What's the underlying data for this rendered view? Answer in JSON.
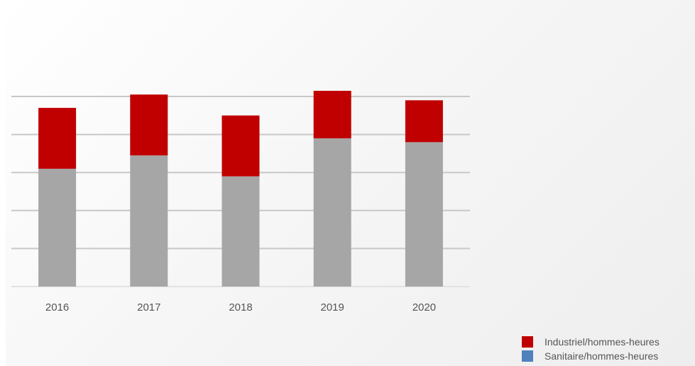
{
  "chart_data": {
    "type": "bar",
    "stacked": true,
    "categories": [
      "2016",
      "2017",
      "2018",
      "2019",
      "2020"
    ],
    "series": [
      {
        "name": "Sanitaire/hommes-heures",
        "color": "#4f81bd",
        "values": [
          3.1,
          3.45,
          2.9,
          3.9,
          3.8
        ]
      },
      {
        "name": "Industriel/hommes-heures",
        "color": "#c00000",
        "values": [
          1.6,
          1.6,
          1.6,
          1.25,
          1.1
        ]
      }
    ],
    "bar_fill_color": "#a6a6a6",
    "ylim": [
      0,
      5
    ],
    "grid": true,
    "legend_position": "bottom-right"
  }
}
